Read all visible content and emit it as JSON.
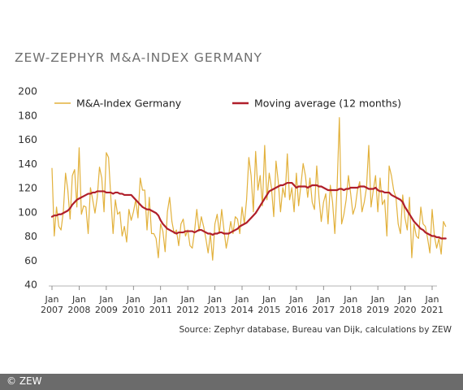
{
  "chart_data": {
    "type": "line",
    "title": "ZEW-ZEPHYR M&A-INDEX GERMANY",
    "xlabel": "",
    "ylabel": "",
    "ylim": [
      40,
      200
    ],
    "yticks": [
      40,
      60,
      80,
      100,
      120,
      140,
      160,
      180,
      200
    ],
    "xlim": [
      "2007-01",
      "2021-01"
    ],
    "xtick_labels": [
      {
        "month": "Jan",
        "year": "2007"
      },
      {
        "month": "Jan",
        "year": "2008"
      },
      {
        "month": "Jan",
        "year": "2009"
      },
      {
        "month": "Jan",
        "year": "2010"
      },
      {
        "month": "Jan",
        "year": "2011"
      },
      {
        "month": "Jan",
        "year": "2012"
      },
      {
        "month": "Jan",
        "year": "2013"
      },
      {
        "month": "Jan",
        "year": "2014"
      },
      {
        "month": "Jan",
        "year": "2015"
      },
      {
        "month": "Jan",
        "year": "2016"
      },
      {
        "month": "Jan",
        "year": "2017"
      },
      {
        "month": "Jan",
        "year": "2018"
      },
      {
        "month": "Jan",
        "year": "2019"
      },
      {
        "month": "Jan",
        "year": "2020"
      },
      {
        "month": "Jan",
        "year": "2021"
      }
    ],
    "grid": false,
    "legend_position": "top",
    "series": [
      {
        "name": "M&A-Index Germany",
        "color": "#e2b13c",
        "start": "2007-01",
        "frequency": "monthly",
        "values": [
          136,
          80,
          104,
          88,
          85,
          100,
          132,
          118,
          94,
          130,
          135,
          104,
          153,
          98,
          105,
          104,
          82,
          120,
          110,
          99,
          112,
          137,
          128,
          100,
          149,
          145,
          112,
          82,
          110,
          98,
          100,
          80,
          88,
          75,
          102,
          93,
          100,
          110,
          95,
          128,
          118,
          118,
          85,
          112,
          82,
          82,
          78,
          62,
          90,
          84,
          67,
          100,
          112,
          92,
          82,
          85,
          72,
          90,
          94,
          80,
          85,
          72,
          70,
          84,
          102,
          84,
          96,
          88,
          78,
          66,
          82,
          60,
          90,
          98,
          82,
          102,
          85,
          70,
          80,
          92,
          82,
          96,
          94,
          82,
          104,
          90,
          110,
          145,
          130,
          100,
          150,
          118,
          130,
          105,
          155,
          110,
          132,
          120,
          96,
          142,
          125,
          100,
          120,
          112,
          148,
          110,
          120,
          100,
          132,
          105,
          122,
          140,
          130,
          112,
          128,
          108,
          102,
          138,
          112,
          92,
          108,
          115,
          90,
          122,
          108,
          82,
          120,
          178,
          90,
          98,
          110,
          130,
          115,
          98,
          104,
          118,
          125,
          100,
          108,
          120,
          155,
          104,
          118,
          130,
          100,
          128,
          106,
          110,
          80,
          138,
          130,
          118,
          112,
          90,
          82,
          114,
          95,
          85,
          112,
          62,
          90,
          80,
          78,
          104,
          90,
          88,
          78,
          66,
          102,
          80,
          70,
          78,
          65,
          92,
          88
        ]
      },
      {
        "name": "Moving average (12 months)",
        "color": "#b01f2a",
        "start": "2007-01",
        "frequency": "monthly",
        "values": [
          96,
          97,
          97,
          98,
          98,
          99,
          100,
          101,
          103,
          106,
          108,
          110,
          111,
          112,
          113,
          114,
          115,
          115,
          116,
          116,
          117,
          117,
          117,
          117,
          116,
          116,
          116,
          115,
          116,
          116,
          115,
          115,
          114,
          114,
          114,
          114,
          112,
          110,
          108,
          106,
          104,
          103,
          102,
          102,
          101,
          100,
          99,
          97,
          93,
          90,
          88,
          86,
          85,
          84,
          83,
          82,
          83,
          83,
          83,
          84,
          84,
          84,
          84,
          83,
          84,
          85,
          85,
          84,
          83,
          82,
          82,
          81,
          82,
          82,
          83,
          83,
          82,
          82,
          82,
          83,
          84,
          85,
          86,
          88,
          89,
          90,
          91,
          93,
          95,
          97,
          99,
          102,
          105,
          108,
          111,
          114,
          117,
          118,
          119,
          120,
          121,
          122,
          122,
          123,
          124,
          124,
          124,
          122,
          120,
          121,
          121,
          121,
          121,
          120,
          121,
          122,
          122,
          122,
          121,
          121,
          120,
          119,
          118,
          118,
          118,
          118,
          118,
          119,
          119,
          118,
          119,
          119,
          120,
          120,
          120,
          120,
          121,
          121,
          121,
          120,
          119,
          119,
          119,
          120,
          118,
          117,
          117,
          116,
          116,
          116,
          114,
          113,
          112,
          111,
          110,
          108,
          104,
          101,
          98,
          95,
          92,
          90,
          88,
          86,
          85,
          83,
          82,
          81,
          80,
          80,
          79,
          79,
          78,
          78,
          78
        ]
      }
    ],
    "source": "Source: Zephyr database, Bureau van Dijk, calculations by ZEW"
  },
  "footer": {
    "copyright": "© ZEW"
  }
}
